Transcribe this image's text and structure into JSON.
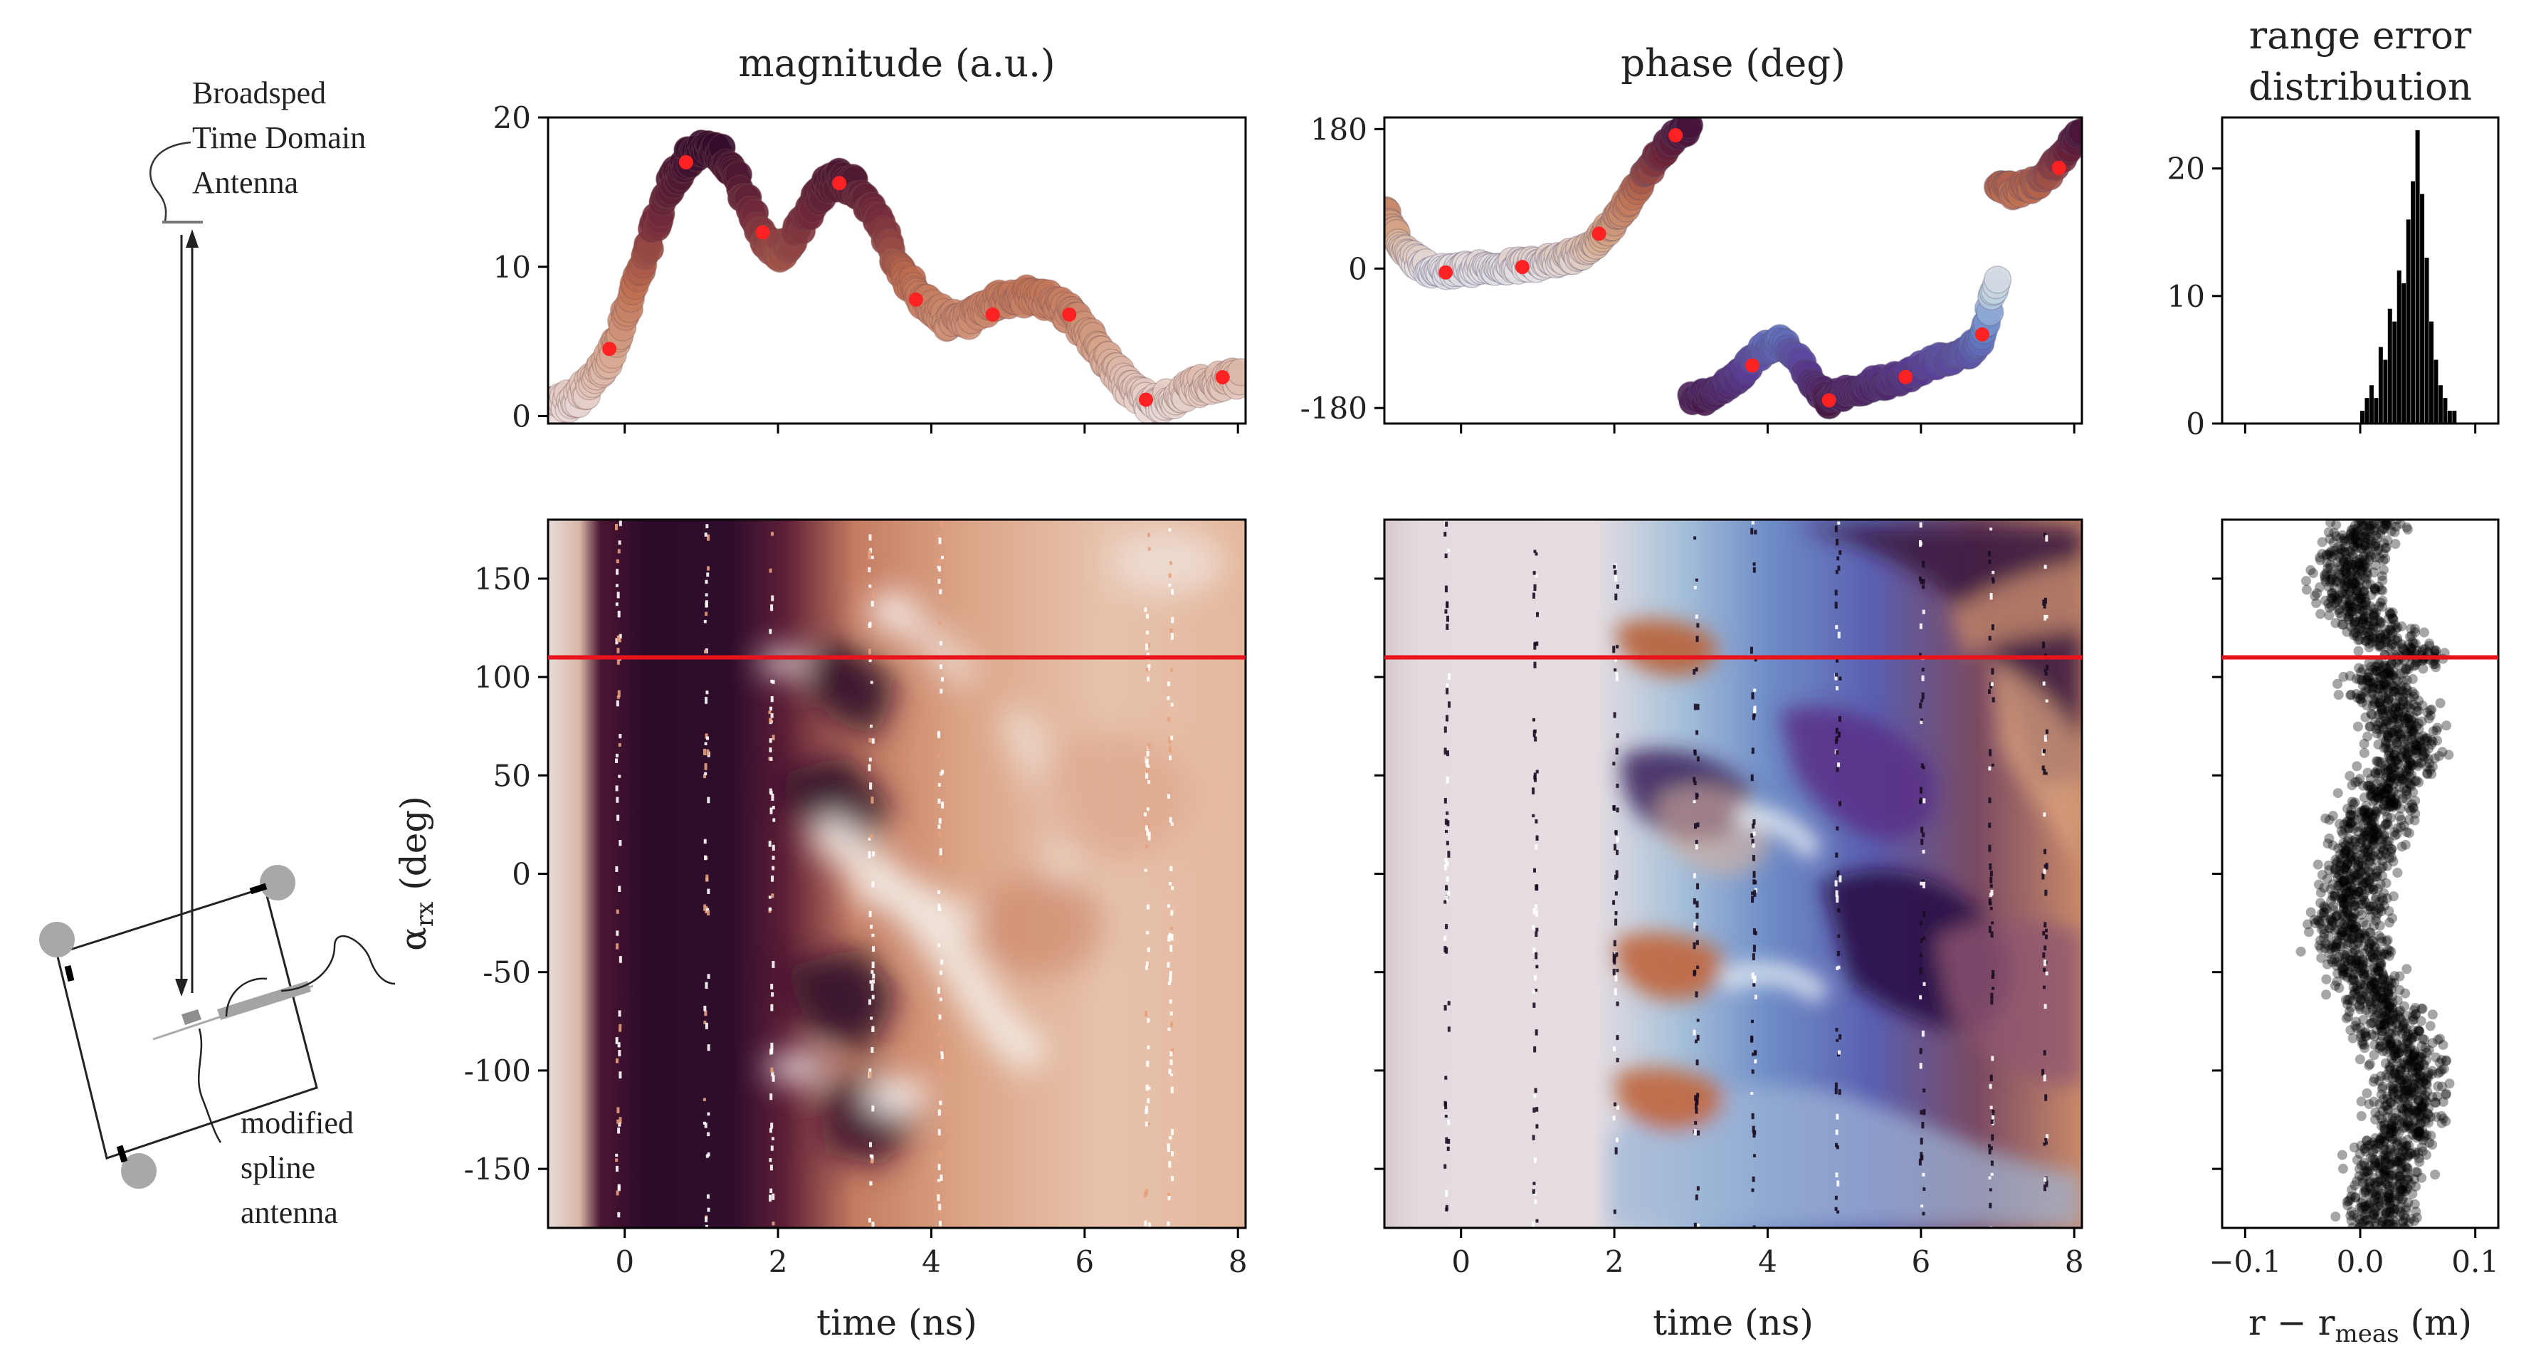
{
  "figure": {
    "diagram": {
      "top_antenna_label": [
        "Broadsped",
        "Time Domain",
        "Antenna"
      ],
      "bottom_antenna_label": [
        "modified",
        "spline",
        "antenna"
      ]
    },
    "y_axis_label": "α_rx (deg)",
    "time_label": "time (ns)",
    "range_xlabel": "r − r_meas (m)",
    "highlight_angle_deg": 110,
    "colors": {
      "highlight": "#e8131b",
      "marker": "#ff2222",
      "hist": "#000000"
    }
  },
  "chart_data": [
    {
      "id": "magnitude-trace",
      "type": "scatter",
      "title": "magnitude (a.u.)",
      "xlabel": "time (ns)",
      "ylabel": "",
      "xlim": [
        -1,
        8.1
      ],
      "ylim": [
        -0.5,
        20
      ],
      "xticks": [
        0,
        2,
        4,
        6,
        8
      ],
      "yticks": [
        0,
        10,
        20
      ],
      "show_xticklabels": false,
      "envelope": {
        "t": [
          -1.0,
          -0.8,
          -0.6,
          -0.4,
          -0.2,
          0.0,
          0.2,
          0.4,
          0.6,
          0.8,
          1.0,
          1.2,
          1.4,
          1.6,
          1.8,
          2.0,
          2.2,
          2.4,
          2.6,
          2.8,
          3.0,
          3.2,
          3.4,
          3.6,
          3.8,
          4.0,
          4.2,
          4.4,
          4.6,
          4.8,
          5.0,
          5.2,
          5.4,
          5.6,
          5.8,
          6.0,
          6.2,
          6.4,
          6.6,
          6.8,
          7.0,
          7.2,
          7.4,
          7.6,
          7.8,
          8.1
        ],
        "y": [
          0.6,
          0.9,
          1.4,
          2.3,
          4.0,
          6.8,
          9.8,
          12.8,
          15.5,
          17.2,
          18.0,
          17.9,
          16.6,
          14.2,
          12.1,
          10.9,
          11.8,
          13.8,
          15.3,
          15.9,
          15.4,
          14.0,
          12.0,
          9.9,
          8.2,
          7.3,
          6.5,
          6.2,
          6.7,
          7.4,
          7.9,
          8.0,
          7.9,
          7.6,
          6.9,
          5.7,
          4.4,
          3.0,
          1.8,
          1.0,
          0.9,
          1.3,
          1.8,
          2.1,
          2.4,
          2.6
        ]
      },
      "markers": {
        "t": [
          -0.2,
          0.8,
          1.8,
          2.8,
          3.8,
          4.8,
          5.8,
          6.8,
          7.8
        ],
        "y": [
          4.5,
          17.0,
          12.3,
          15.6,
          7.8,
          6.8,
          6.8,
          1.1,
          2.6
        ]
      }
    },
    {
      "id": "phase-trace",
      "type": "scatter",
      "title": "phase (deg)",
      "xlabel": "time (ns)",
      "ylabel": "",
      "xlim": [
        -1,
        8.1
      ],
      "ylim": [
        -200,
        195
      ],
      "xticks": [
        0,
        2,
        4,
        6,
        8
      ],
      "yticks": [
        -180,
        0,
        180
      ],
      "show_xticklabels": false,
      "segments": [
        {
          "t": [
            -1.0,
            -0.8,
            -0.6,
            -0.4,
            -0.2,
            0.0,
            0.2,
            0.4,
            0.6,
            0.8,
            1.0,
            1.2,
            1.4,
            1.6,
            1.8,
            2.0,
            2.2,
            2.4,
            2.6,
            2.8,
            3.0
          ],
          "y": [
            75,
            35,
            10,
            -2,
            -5,
            -2,
            0,
            2,
            3,
            4,
            6,
            10,
            15,
            20,
            40,
            60,
            90,
            120,
            150,
            170,
            180
          ]
        },
        {
          "t": [
            3.0,
            3.2,
            3.4,
            3.6,
            3.8,
            4.0,
            4.2,
            4.4,
            4.6,
            4.8,
            5.0,
            5.2,
            5.4,
            5.6,
            5.8,
            6.0,
            6.2,
            6.4,
            6.6,
            6.8,
            7.0
          ],
          "y": [
            -170,
            -165,
            -155,
            -140,
            -120,
            -100,
            -95,
            -115,
            -150,
            -170,
            -160,
            -155,
            -148,
            -145,
            -140,
            -130,
            -120,
            -115,
            -110,
            -90,
            -10
          ]
        },
        {
          "t": [
            7.0,
            7.2,
            7.4,
            7.6,
            7.8,
            8.1
          ],
          "y": [
            110,
            100,
            105,
            115,
            140,
            180
          ]
        }
      ],
      "markers": {
        "t": [
          -0.2,
          0.8,
          1.8,
          2.8,
          3.8,
          4.8,
          5.8,
          6.8,
          7.8
        ],
        "y": [
          -5,
          2,
          45,
          172,
          -125,
          -170,
          -140,
          -85,
          130
        ]
      }
    },
    {
      "id": "range-histogram",
      "type": "bar",
      "title": "range error distribution",
      "xlabel": "r − r_meas (m)",
      "ylabel": "",
      "xlim": [
        -0.12,
        0.12
      ],
      "ylim": [
        0,
        24
      ],
      "xticks": [
        -0.1,
        0.0,
        0.1
      ],
      "yticks": [
        0,
        10,
        20
      ],
      "show_xticklabels": false,
      "bin_centers": [
        0.002,
        0.006,
        0.01,
        0.014,
        0.018,
        0.022,
        0.026,
        0.03,
        0.034,
        0.038,
        0.042,
        0.046,
        0.05,
        0.054,
        0.058,
        0.062,
        0.066,
        0.07,
        0.074,
        0.078,
        0.082
      ],
      "counts": [
        1,
        2,
        3,
        2,
        6,
        5,
        9,
        8,
        12,
        11,
        16,
        19,
        23,
        18,
        13,
        8,
        5,
        3,
        2,
        1,
        1
      ]
    },
    {
      "id": "magnitude-map",
      "type": "heatmap",
      "title": "",
      "xlabel": "time (ns)",
      "ylabel": "α_rx (deg)",
      "xlim": [
        -1,
        8.1
      ],
      "ylim": [
        -180,
        180
      ],
      "xticks": [
        0,
        2,
        4,
        6,
        8
      ],
      "yticks": [
        -150,
        -100,
        -50,
        0,
        50,
        100,
        150
      ],
      "highlight_y": 110
    },
    {
      "id": "phase-map",
      "type": "heatmap",
      "title": "",
      "xlabel": "time (ns)",
      "ylabel": "",
      "xlim": [
        -1,
        8.1
      ],
      "ylim": [
        -180,
        180
      ],
      "xticks": [
        0,
        2,
        4,
        6,
        8
      ],
      "yticks": [
        -150,
        -100,
        -50,
        0,
        50,
        100,
        150
      ],
      "show_yticklabels": false,
      "highlight_y": 110
    },
    {
      "id": "range-scatter",
      "type": "scatter",
      "title": "",
      "xlabel": "r − r_meas (m)",
      "ylabel": "",
      "xlim": [
        -0.12,
        0.12
      ],
      "ylim": [
        -180,
        180
      ],
      "xticks": [
        -0.1,
        0.0,
        0.1
      ],
      "yticks": [
        -150,
        -100,
        -50,
        0,
        50,
        100,
        150
      ],
      "show_yticklabels": false,
      "highlight_y": 110,
      "center_curve": {
        "angle": [
          -180,
          -160,
          -140,
          -120,
          -100,
          -80,
          -60,
          -40,
          -20,
          0,
          20,
          40,
          60,
          80,
          100,
          110,
          120,
          140,
          160,
          180
        ],
        "offset": [
          0.015,
          0.02,
          0.028,
          0.04,
          0.045,
          0.03,
          0.01,
          -0.005,
          -0.01,
          -0.005,
          0.005,
          0.02,
          0.04,
          0.035,
          0.012,
          0.05,
          0.02,
          -0.01,
          -0.005,
          0.01
        ]
      },
      "spread_m": 0.032
    }
  ]
}
